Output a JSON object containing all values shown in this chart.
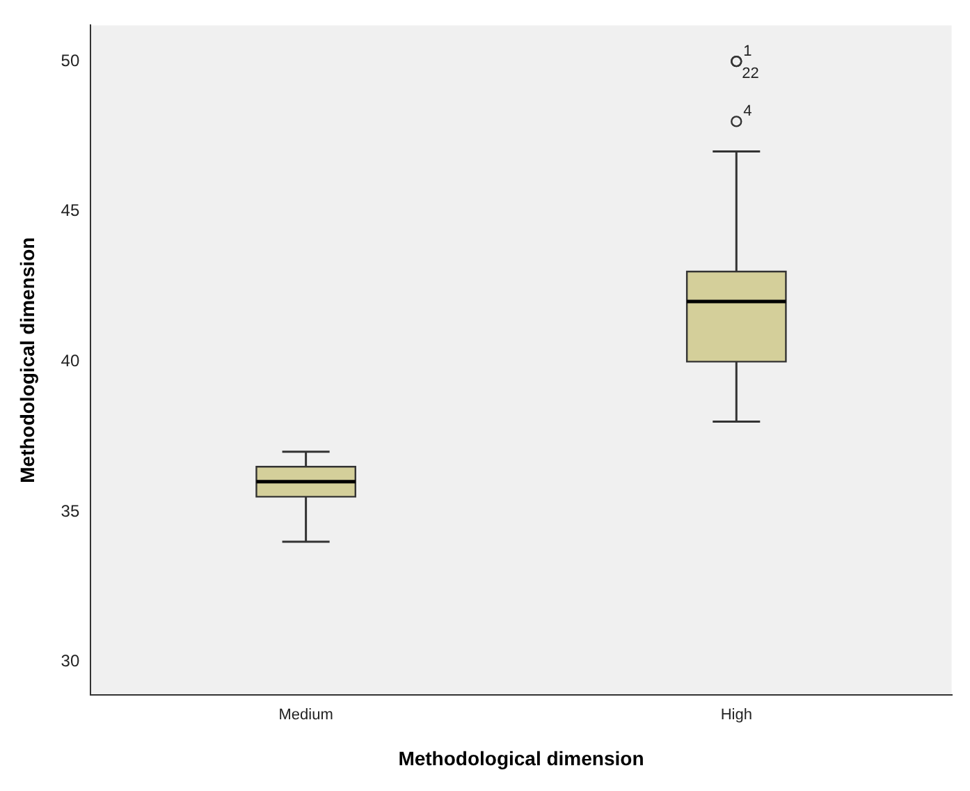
{
  "chart_data": {
    "type": "box",
    "xlabel": "Methodological dimension",
    "ylabel": "Methodological dimension",
    "categories": [
      "Medium",
      "High"
    ],
    "color": "#d4cf9a",
    "boxes": [
      {
        "low": 34,
        "q1": 35.5,
        "median": 36,
        "q3": 36.5,
        "high": 37
      },
      {
        "low": 38,
        "q1": 40,
        "median": 42,
        "q3": 43,
        "high": 47,
        "outliers": [
          50,
          50,
          48
        ]
      }
    ],
    "ylim": [
      28.9,
      51.2
    ],
    "yticks": [
      30,
      35,
      40,
      45,
      50
    ],
    "grid": false,
    "legend": false,
    "annotations": [
      "1",
      "22",
      "4"
    ]
  }
}
